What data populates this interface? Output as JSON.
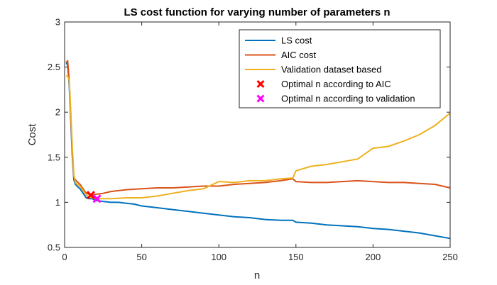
{
  "chart_data": {
    "type": "line",
    "title": "LS cost function for varying number of parameters n",
    "xlabel": "n",
    "ylabel": "Cost",
    "xlim": [
      0,
      250
    ],
    "ylim": [
      0.5,
      3
    ],
    "xticks": [
      0,
      50,
      100,
      150,
      200,
      250
    ],
    "yticks": [
      0.5,
      1,
      1.5,
      2,
      2.5,
      3
    ],
    "xtick_labels": [
      "0",
      "50",
      "100",
      "150",
      "200",
      "250"
    ],
    "ytick_labels": [
      "0.5",
      "1",
      "1.5",
      "2",
      "2.5",
      "3"
    ],
    "grid": false,
    "legend_position": "top-right",
    "series": [
      {
        "name": "LS cost",
        "color": "#0072BD",
        "x": [
          1,
          2,
          3,
          4,
          5,
          6,
          7,
          8,
          10,
          12,
          14,
          16,
          18,
          20,
          25,
          30,
          35,
          40,
          45,
          50,
          55,
          60,
          70,
          80,
          90,
          100,
          110,
          120,
          130,
          140,
          148,
          150,
          160,
          170,
          180,
          190,
          200,
          210,
          220,
          230,
          240,
          250
        ],
        "y": [
          2.55,
          2.52,
          2.3,
          1.9,
          1.5,
          1.25,
          1.2,
          1.18,
          1.15,
          1.1,
          1.05,
          1.04,
          1.04,
          1.02,
          1.01,
          1.0,
          1.0,
          0.99,
          0.98,
          0.96,
          0.95,
          0.94,
          0.92,
          0.9,
          0.88,
          0.86,
          0.84,
          0.83,
          0.81,
          0.8,
          0.8,
          0.78,
          0.77,
          0.75,
          0.74,
          0.73,
          0.71,
          0.7,
          0.68,
          0.66,
          0.63,
          0.6
        ]
      },
      {
        "name": "AIC cost",
        "color": "#D95319",
        "x": [
          1,
          2,
          3,
          4,
          5,
          6,
          7,
          8,
          10,
          12,
          14,
          16,
          18,
          20,
          25,
          30,
          40,
          50,
          60,
          70,
          80,
          90,
          100,
          110,
          120,
          130,
          140,
          148,
          150,
          160,
          170,
          180,
          190,
          200,
          210,
          220,
          230,
          240,
          250
        ],
        "y": [
          2.55,
          2.57,
          2.35,
          1.95,
          1.55,
          1.28,
          1.25,
          1.23,
          1.2,
          1.15,
          1.1,
          1.09,
          1.08,
          1.09,
          1.1,
          1.12,
          1.14,
          1.15,
          1.16,
          1.16,
          1.17,
          1.18,
          1.18,
          1.2,
          1.21,
          1.22,
          1.24,
          1.26,
          1.23,
          1.22,
          1.22,
          1.23,
          1.24,
          1.23,
          1.22,
          1.22,
          1.21,
          1.2,
          1.16
        ]
      },
      {
        "name": "Validation dataset based",
        "color": "#EDB120",
        "x": [
          1,
          2,
          3,
          4,
          5,
          6,
          7,
          8,
          10,
          12,
          14,
          16,
          18,
          20,
          25,
          30,
          40,
          50,
          60,
          70,
          80,
          90,
          100,
          110,
          120,
          130,
          140,
          148,
          150,
          160,
          170,
          180,
          190,
          200,
          210,
          220,
          230,
          240,
          250
        ],
        "y": [
          2.4,
          2.4,
          2.35,
          2.0,
          1.6,
          1.3,
          1.22,
          1.2,
          1.18,
          1.13,
          1.08,
          1.06,
          1.05,
          1.04,
          1.04,
          1.04,
          1.05,
          1.05,
          1.07,
          1.1,
          1.13,
          1.15,
          1.23,
          1.22,
          1.24,
          1.24,
          1.26,
          1.27,
          1.35,
          1.4,
          1.42,
          1.45,
          1.48,
          1.6,
          1.62,
          1.68,
          1.75,
          1.85,
          1.99
        ]
      }
    ],
    "markers": [
      {
        "name": "Optimal n according to AIC",
        "color": "#FF0000",
        "x": 17,
        "y": 1.08
      },
      {
        "name": "Optimal n according to validation",
        "color": "#FF00FF",
        "x": 21,
        "y": 1.04
      }
    ]
  }
}
